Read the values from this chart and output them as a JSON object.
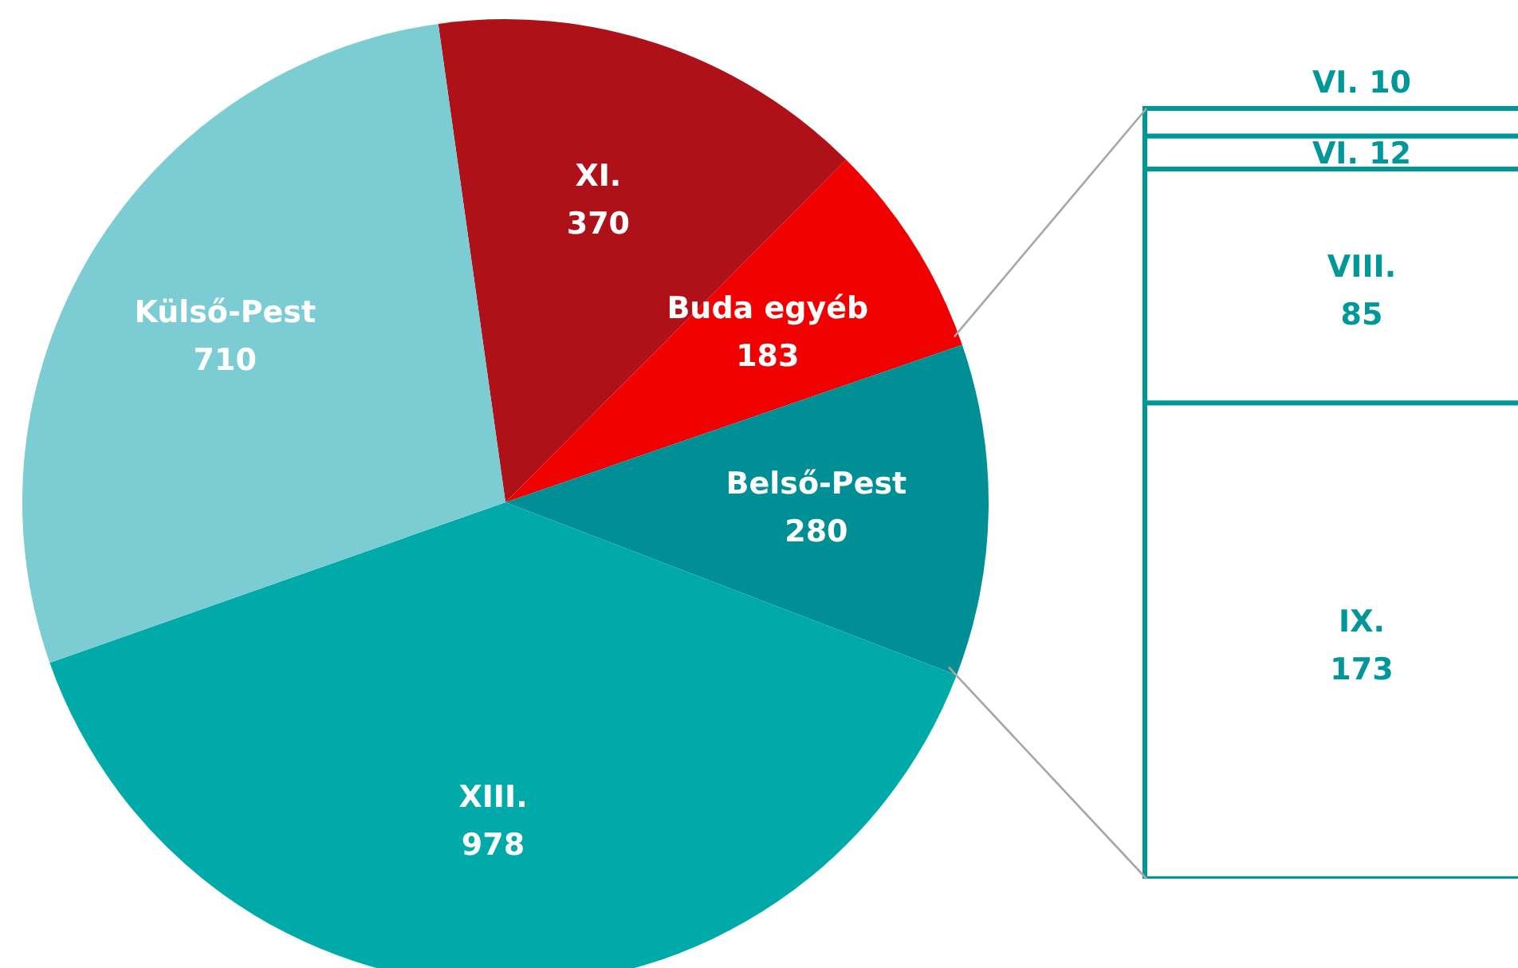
{
  "chart_data": [
    {
      "type": "pie",
      "categories": [
        "XI.",
        "Buda egyéb",
        "Belső-Pest",
        "XIII.",
        "Külső-Pest"
      ],
      "values": [
        370,
        183,
        280,
        978,
        710
      ],
      "colors": [
        "#ae1118",
        "#f00000",
        "#008f94",
        "#00aaa9",
        "#7ccdd3"
      ],
      "data_labels": true
    },
    {
      "type": "bar",
      "stacked": true,
      "categories": [
        null
      ],
      "data_labels": true,
      "series": [
        {
          "name": "IX.",
          "color": "#ffffff",
          "values": [
            173
          ]
        },
        {
          "name": "VIII.",
          "color": "#ffffff",
          "values": [
            85
          ]
        },
        {
          "name": "VI.",
          "color": "#ffffff",
          "values": [
            12
          ]
        },
        {
          "name": "VI.",
          "color": "#ffffff",
          "values": [
            10
          ]
        }
      ]
    }
  ]
}
